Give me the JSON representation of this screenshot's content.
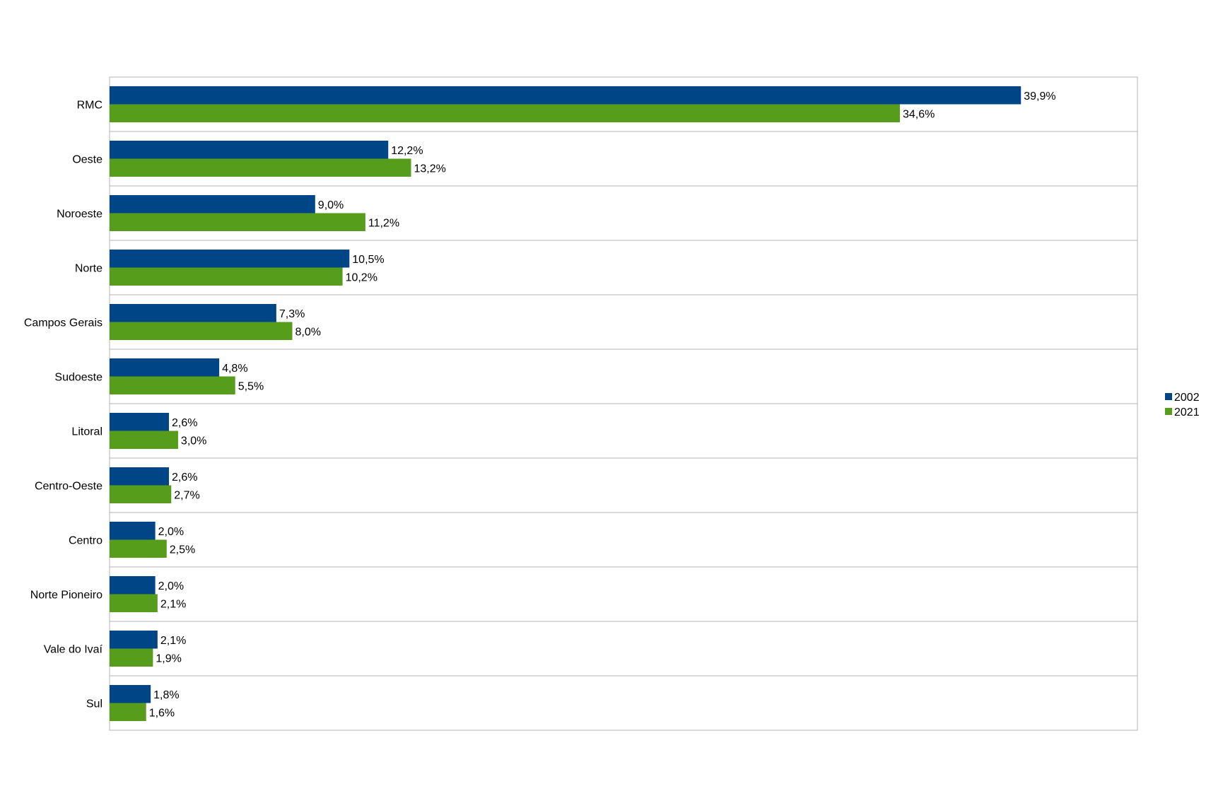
{
  "chart_data": {
    "type": "bar",
    "orientation": "horizontal",
    "categories": [
      "RMC",
      "Oeste",
      "Noroeste",
      "Norte",
      "Campos Gerais",
      "Sudoeste",
      "Litoral",
      "Centro-Oeste",
      "Centro",
      "Norte Pioneiro",
      "Vale do Ivaí",
      "Sul"
    ],
    "series": [
      {
        "name": "2002",
        "color": "#004586",
        "values": [
          39.9,
          12.2,
          9.0,
          10.5,
          7.3,
          4.8,
          2.6,
          2.6,
          2.0,
          2.0,
          2.1,
          1.8
        ],
        "labels": [
          "39,9%",
          "12,2%",
          "9,0%",
          "10,5%",
          "7,3%",
          "4,8%",
          "2,6%",
          "2,6%",
          "2,0%",
          "2,0%",
          "2,1%",
          "1,8%"
        ]
      },
      {
        "name": "2021",
        "color": "#579d1c",
        "values": [
          34.6,
          13.2,
          11.2,
          10.2,
          8.0,
          5.5,
          3.0,
          2.7,
          2.5,
          2.1,
          1.9,
          1.6
        ],
        "labels": [
          "34,6%",
          "13,2%",
          "11,2%",
          "10,2%",
          "8,0%",
          "5,5%",
          "3,0%",
          "2,7%",
          "2,5%",
          "2,1%",
          "1,9%",
          "1,6%"
        ]
      }
    ],
    "xlim": [
      0,
      45
    ],
    "title": "",
    "xlabel": "",
    "ylabel": "",
    "grid": true,
    "legend_position": "right",
    "gridline_color": "#b3b3b3"
  }
}
